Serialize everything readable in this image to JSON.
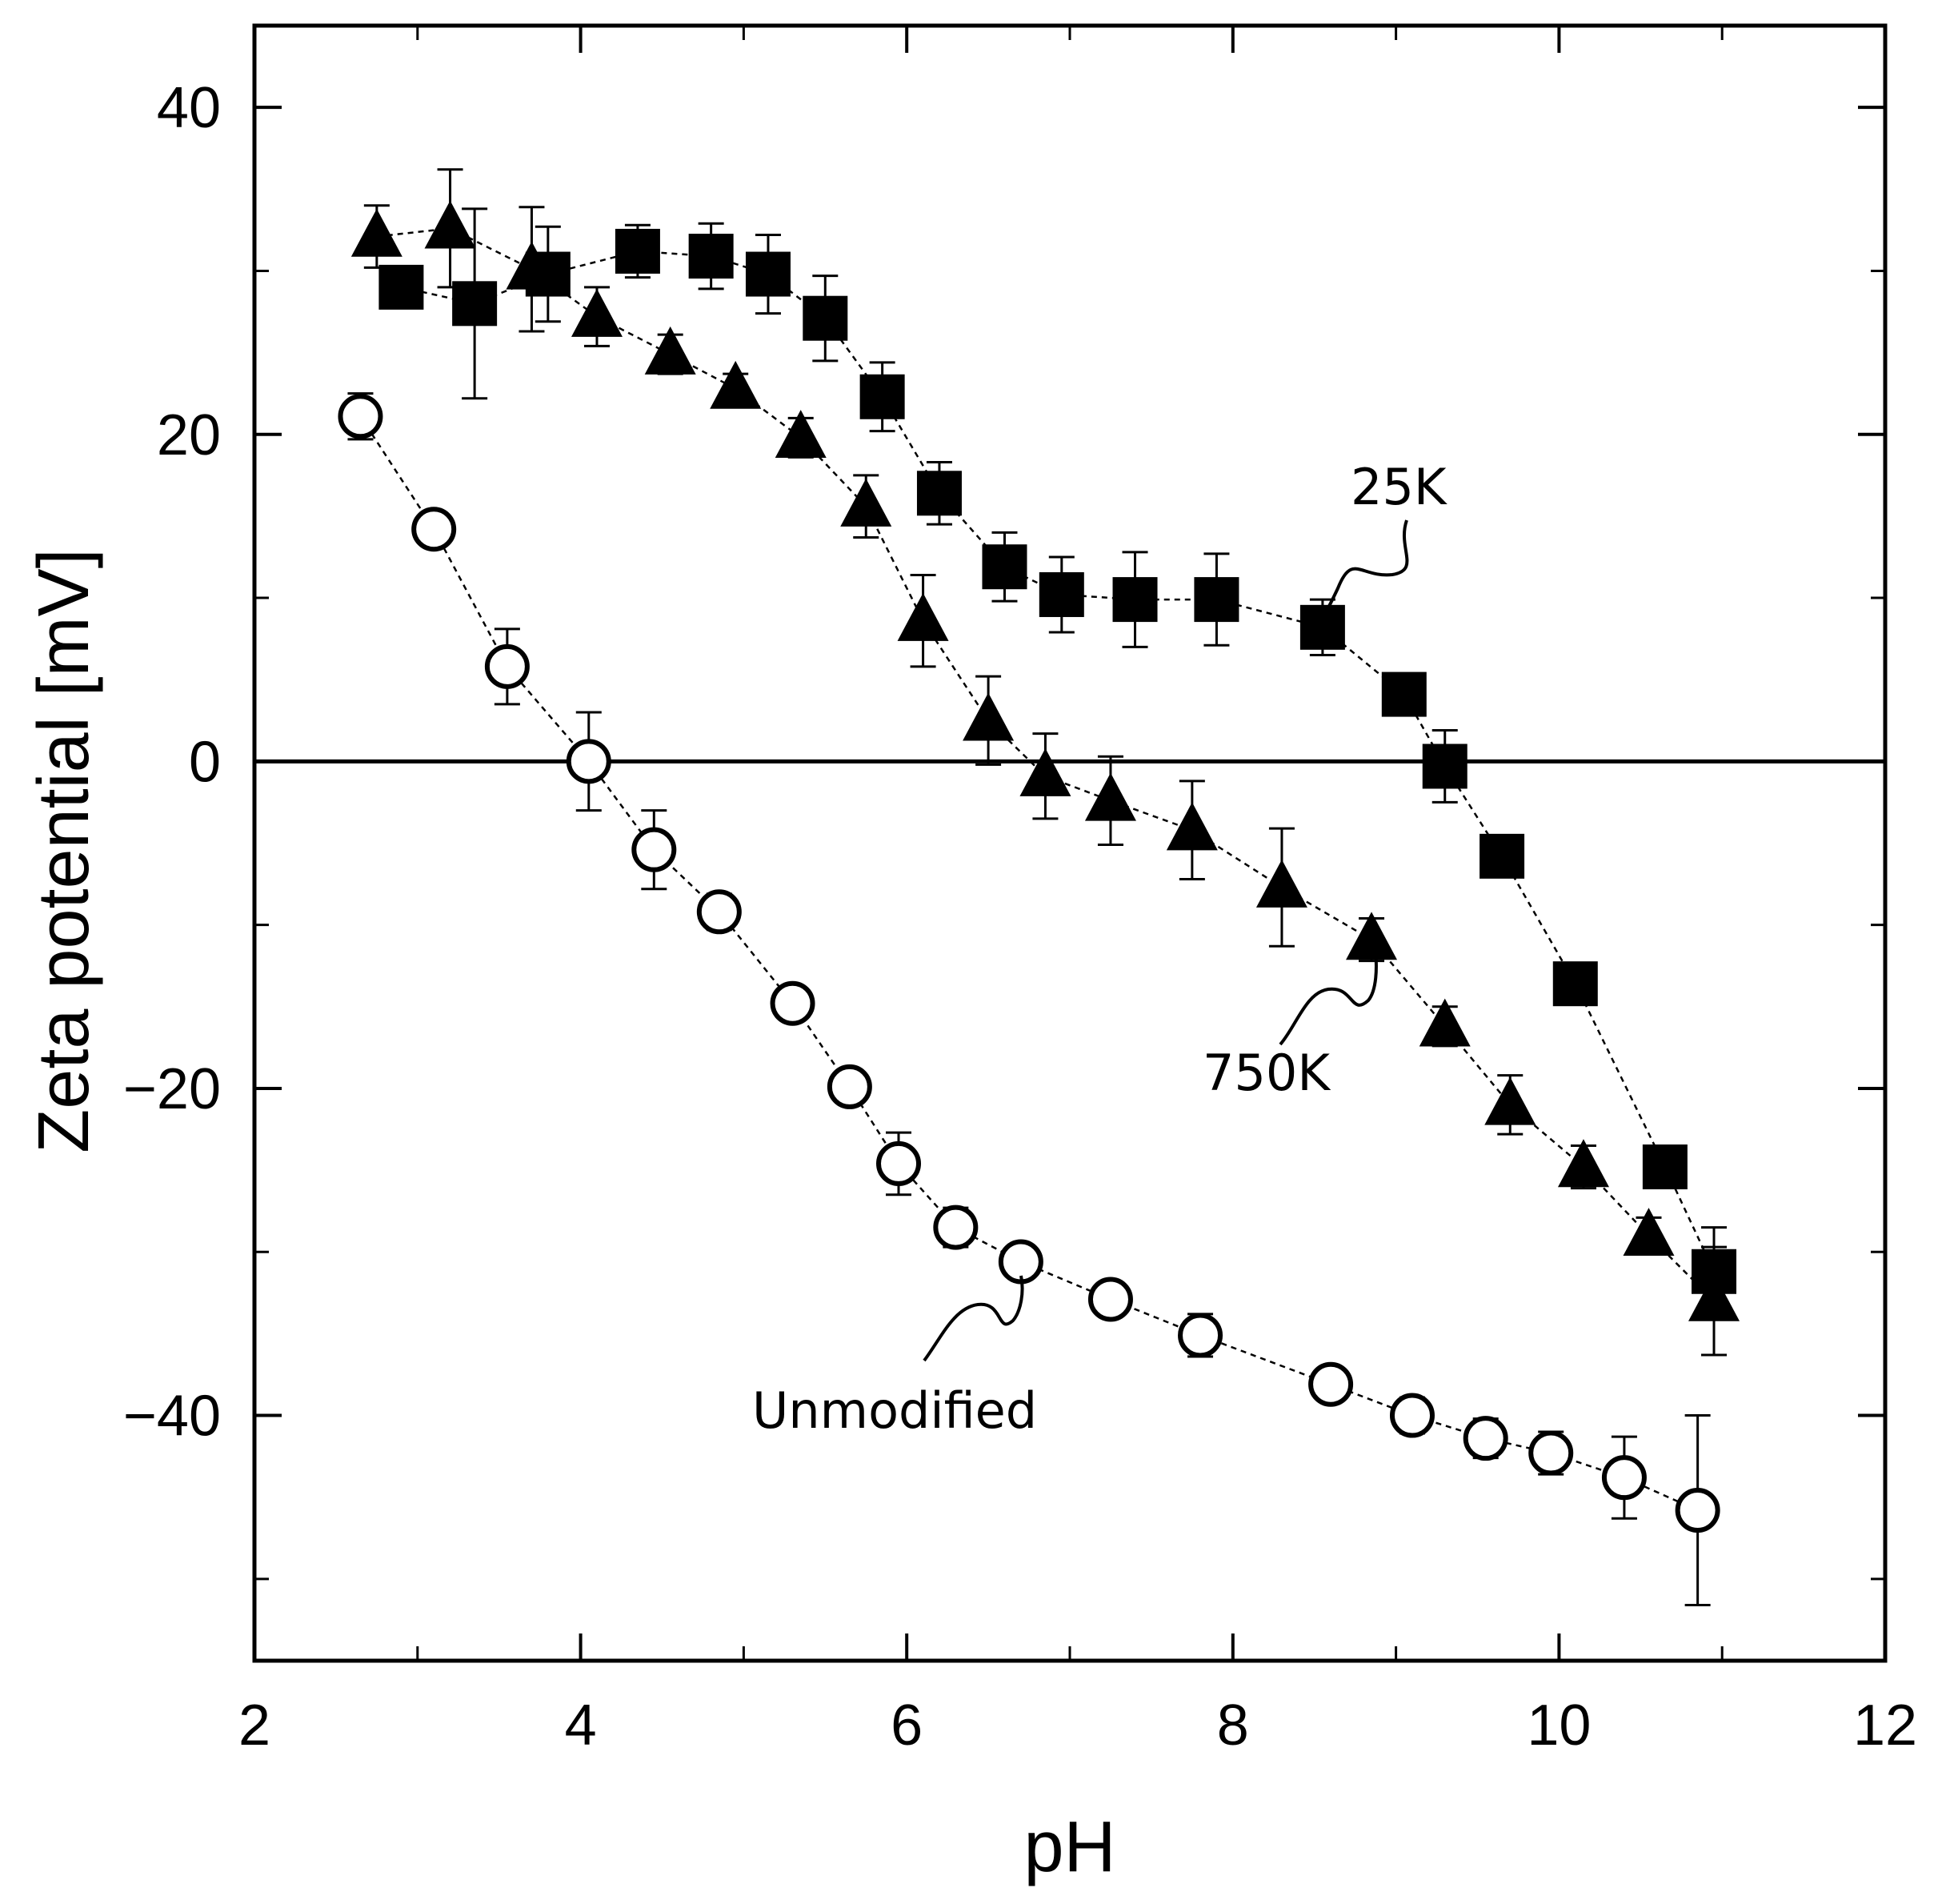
{
  "chart_data": {
    "type": "scatter",
    "title": "",
    "xlabel": "pH",
    "ylabel": "Zeta potential [mV]",
    "xlim": [
      2,
      12
    ],
    "ylim": [
      -55,
      45
    ],
    "xticks": [
      2,
      4,
      6,
      8,
      10,
      12
    ],
    "xtick_labels": [
      "2",
      "4",
      "6",
      "8",
      "10",
      "12"
    ],
    "yticks": [
      40,
      20,
      0,
      -20,
      -40
    ],
    "ytick_labels": [
      "40",
      "20",
      "0",
      "−20",
      "−40"
    ],
    "grid": false,
    "zero_line": true,
    "series": [
      {
        "name": "25K",
        "marker": "square",
        "line": "dashed",
        "points": [
          {
            "x": 2.9,
            "y": 29.0,
            "err": 0
          },
          {
            "x": 3.35,
            "y": 28.0,
            "err": 5.8
          },
          {
            "x": 3.8,
            "y": 29.8,
            "err": 2.9
          },
          {
            "x": 4.35,
            "y": 31.2,
            "err": 1.6
          },
          {
            "x": 4.8,
            "y": 30.9,
            "err": 2.0
          },
          {
            "x": 5.15,
            "y": 29.8,
            "err": 2.4
          },
          {
            "x": 5.5,
            "y": 27.1,
            "err": 2.6
          },
          {
            "x": 5.85,
            "y": 22.3,
            "err": 2.1
          },
          {
            "x": 6.2,
            "y": 16.4,
            "err": 1.9
          },
          {
            "x": 6.6,
            "y": 11.9,
            "err": 2.1
          },
          {
            "x": 6.95,
            "y": 10.2,
            "err": 2.3
          },
          {
            "x": 7.4,
            "y": 9.9,
            "err": 2.9
          },
          {
            "x": 7.9,
            "y": 9.9,
            "err": 2.8
          },
          {
            "x": 8.55,
            "y": 8.2,
            "err": 1.7
          },
          {
            "x": 9.05,
            "y": 4.1,
            "err": 0
          },
          {
            "x": 9.3,
            "y": -0.3,
            "err": 2.2
          },
          {
            "x": 9.65,
            "y": -5.8,
            "err": 0
          },
          {
            "x": 10.1,
            "y": -13.6,
            "err": 0
          },
          {
            "x": 10.65,
            "y": -24.8,
            "err": 0
          },
          {
            "x": 10.95,
            "y": -31.2,
            "err": 2.7
          }
        ]
      },
      {
        "name": "750K",
        "marker": "triangle",
        "line": "dashed",
        "points": [
          {
            "x": 2.75,
            "y": 32.1,
            "err": 1.9
          },
          {
            "x": 3.2,
            "y": 32.6,
            "err": 3.6
          },
          {
            "x": 3.7,
            "y": 30.1,
            "err": 3.8
          },
          {
            "x": 4.1,
            "y": 27.2,
            "err": 1.8
          },
          {
            "x": 4.55,
            "y": 24.9,
            "err": 1.2
          },
          {
            "x": 4.95,
            "y": 22.8,
            "err": 0.9
          },
          {
            "x": 5.35,
            "y": 19.8,
            "err": 1.2
          },
          {
            "x": 5.75,
            "y": 15.6,
            "err": 1.9
          },
          {
            "x": 6.1,
            "y": 8.6,
            "err": 2.8
          },
          {
            "x": 6.5,
            "y": 2.5,
            "err": 2.7
          },
          {
            "x": 6.85,
            "y": -0.9,
            "err": 2.6
          },
          {
            "x": 7.25,
            "y": -2.4,
            "err": 2.7
          },
          {
            "x": 7.75,
            "y": -4.2,
            "err": 3.0
          },
          {
            "x": 8.3,
            "y": -7.7,
            "err": 3.6
          },
          {
            "x": 8.85,
            "y": -10.9,
            "err": 1.3
          },
          {
            "x": 9.3,
            "y": -16.2,
            "err": 1.2
          },
          {
            "x": 9.7,
            "y": -21.0,
            "err": 1.8
          },
          {
            "x": 10.15,
            "y": -24.8,
            "err": 1.3
          },
          {
            "x": 10.55,
            "y": -29.0,
            "err": 1.1
          },
          {
            "x": 10.95,
            "y": -33.0,
            "err": 3.3
          }
        ]
      },
      {
        "name": "Unmodified",
        "marker": "circle-open",
        "line": "dashed",
        "points": [
          {
            "x": 2.65,
            "y": 21.1,
            "err": 1.4
          },
          {
            "x": 3.1,
            "y": 14.2,
            "err": 0.9
          },
          {
            "x": 3.55,
            "y": 5.8,
            "err": 2.3
          },
          {
            "x": 4.05,
            "y": 0.0,
            "err": 3.0
          },
          {
            "x": 4.45,
            "y": -5.4,
            "err": 2.4
          },
          {
            "x": 4.85,
            "y": -9.2,
            "err": 1.1
          },
          {
            "x": 5.3,
            "y": -14.8,
            "err": 0.9
          },
          {
            "x": 5.65,
            "y": -19.9,
            "err": 0.8
          },
          {
            "x": 5.95,
            "y": -24.6,
            "err": 1.9
          },
          {
            "x": 6.3,
            "y": -28.5,
            "err": 1.2
          },
          {
            "x": 6.7,
            "y": -30.6,
            "err": 0.9
          },
          {
            "x": 7.25,
            "y": -32.9,
            "err": 0.9
          },
          {
            "x": 7.8,
            "y": -35.1,
            "err": 1.3
          },
          {
            "x": 8.6,
            "y": -38.1,
            "err": 0
          },
          {
            "x": 9.1,
            "y": -40.0,
            "err": 1.1
          },
          {
            "x": 9.55,
            "y": -41.4,
            "err": 1.2
          },
          {
            "x": 9.95,
            "y": -42.3,
            "err": 1.3
          },
          {
            "x": 10.4,
            "y": -43.8,
            "err": 2.5
          },
          {
            "x": 10.85,
            "y": -45.8,
            "err": 5.8
          }
        ]
      }
    ],
    "annotations": [
      {
        "text": "25K",
        "series": "25K"
      },
      {
        "text": "750K",
        "series": "750K"
      },
      {
        "text": "Unmodified",
        "series": "Unmodified"
      }
    ]
  }
}
